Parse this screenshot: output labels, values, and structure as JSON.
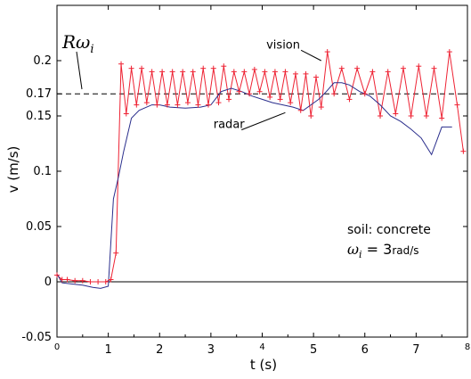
{
  "chart_data": {
    "type": "line",
    "xlabel": "t (s)",
    "ylabel": "v (m/s)",
    "xlim": [
      0,
      8
    ],
    "ylim": [
      -0.05,
      0.25
    ],
    "x_ticks": [
      0,
      1,
      2,
      3,
      4,
      5,
      6,
      7,
      8
    ],
    "x_tick_labels": [
      "0",
      "1",
      "2",
      "3",
      "4",
      "5",
      "6",
      "7",
      "8"
    ],
    "y_ticks": [
      -0.05,
      0,
      0.05,
      0.1,
      0.15,
      0.17,
      0.2
    ],
    "y_tick_labels": [
      "-0.05",
      "0",
      "0.05",
      "0.1",
      "0.15",
      "0.17",
      "0.2"
    ],
    "reference_line": {
      "y": 0.17,
      "label": "Rω",
      "label_sub": "i",
      "color": "#000000",
      "dash": true
    },
    "zero_line": 0,
    "series": [
      {
        "name": "vision",
        "color": "#ee2233",
        "marker": "+",
        "x": [
          0.0,
          0.1,
          0.2,
          0.35,
          0.5,
          0.65,
          0.8,
          0.95,
          1.05,
          1.15,
          1.25,
          1.35,
          1.45,
          1.55,
          1.65,
          1.75,
          1.85,
          1.95,
          2.05,
          2.15,
          2.25,
          2.35,
          2.45,
          2.55,
          2.65,
          2.75,
          2.85,
          2.95,
          3.05,
          3.15,
          3.25,
          3.35,
          3.45,
          3.55,
          3.65,
          3.75,
          3.85,
          3.95,
          4.05,
          4.15,
          4.25,
          4.35,
          4.45,
          4.55,
          4.65,
          4.75,
          4.85,
          4.95,
          5.05,
          5.15,
          5.27,
          5.4,
          5.55,
          5.7,
          5.85,
          6.0,
          6.15,
          6.3,
          6.45,
          6.6,
          6.75,
          6.9,
          7.05,
          7.2,
          7.35,
          7.5,
          7.65,
          7.8,
          7.92
        ],
        "y": [
          0.006,
          0.002,
          0.002,
          0.001,
          0.001,
          0.0,
          0.0,
          0.0,
          0.002,
          0.026,
          0.197,
          0.152,
          0.193,
          0.16,
          0.193,
          0.162,
          0.19,
          0.16,
          0.19,
          0.16,
          0.19,
          0.16,
          0.19,
          0.162,
          0.19,
          0.16,
          0.193,
          0.16,
          0.193,
          0.162,
          0.195,
          0.165,
          0.19,
          0.172,
          0.19,
          0.17,
          0.192,
          0.172,
          0.19,
          0.167,
          0.19,
          0.165,
          0.19,
          0.162,
          0.188,
          0.155,
          0.188,
          0.15,
          0.185,
          0.158,
          0.208,
          0.17,
          0.193,
          0.165,
          0.193,
          0.17,
          0.19,
          0.15,
          0.19,
          0.152,
          0.193,
          0.15,
          0.195,
          0.15,
          0.193,
          0.148,
          0.208,
          0.16,
          0.118
        ]
      },
      {
        "name": "radar",
        "color": "#2a2e8c",
        "marker": "",
        "x": [
          0.0,
          0.1,
          0.3,
          0.5,
          0.7,
          0.85,
          1.0,
          1.1,
          1.2,
          1.3,
          1.45,
          1.6,
          1.75,
          1.85,
          2.0,
          2.2,
          2.5,
          2.8,
          3.0,
          3.2,
          3.4,
          3.6,
          3.8,
          4.0,
          4.2,
          4.4,
          4.6,
          4.8,
          4.95,
          5.1,
          5.25,
          5.4,
          5.55,
          5.7,
          5.9,
          6.1,
          6.3,
          6.5,
          6.7,
          6.9,
          7.1,
          7.3,
          7.5,
          7.7
        ],
        "y": [
          0.007,
          -0.001,
          -0.002,
          -0.003,
          -0.005,
          -0.006,
          -0.004,
          0.075,
          0.095,
          0.118,
          0.148,
          0.155,
          0.158,
          0.16,
          0.16,
          0.158,
          0.157,
          0.158,
          0.16,
          0.172,
          0.175,
          0.172,
          0.168,
          0.165,
          0.162,
          0.16,
          0.158,
          0.155,
          0.16,
          0.165,
          0.172,
          0.18,
          0.18,
          0.178,
          0.172,
          0.168,
          0.16,
          0.15,
          0.145,
          0.138,
          0.13,
          0.115,
          0.14,
          0.14
        ]
      }
    ],
    "annotations": [
      {
        "text": "vision",
        "data_x": 4.08,
        "data_y": 0.211,
        "arrow_to_x": 5.15,
        "arrow_to_y": 0.2
      },
      {
        "text": "radar",
        "data_x": 3.05,
        "data_y": 0.139,
        "arrow_to_x": 4.45,
        "arrow_to_y": 0.153
      }
    ],
    "info_line1": "soil: concrete",
    "info_omega": "ω",
    "info_omega_sub": "i",
    "info_eq": " = 3",
    "info_unit": "rad/s"
  }
}
